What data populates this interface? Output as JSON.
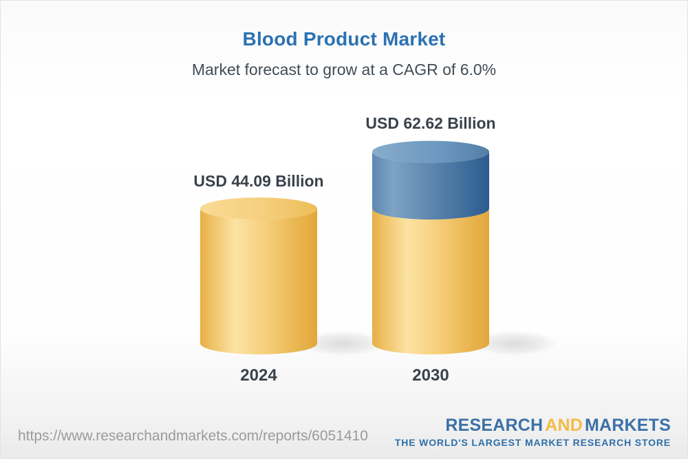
{
  "header": {
    "title": "Blood Product Market",
    "subtitle": "Market forecast to grow at a CAGR of 6.0%"
  },
  "chart_data": {
    "type": "bar",
    "variant": "3d-cylinder",
    "title": "Blood Product Market",
    "subtitle": "Market forecast to grow at a CAGR of 6.0%",
    "cagr_percent": 6.0,
    "unit": "USD Billion",
    "categories": [
      "2024",
      "2030"
    ],
    "values": [
      44.09,
      62.62
    ],
    "value_labels": [
      "USD 44.09 Billion",
      "USD 62.62 Billion"
    ],
    "growth_segment": {
      "bar": "2030",
      "from": 44.09,
      "to": 62.62
    },
    "legend": "none",
    "grid": "off",
    "colors": {
      "base_segment": "#F6CF7C",
      "growth_segment": "#4F7BA6",
      "label_text": "#39424B",
      "title_text": "#2B72B1"
    }
  },
  "footer": {
    "url": "https://www.researchandmarkets.com/reports/6051410",
    "logo": {
      "word1": "RESEARCH",
      "word2": "AND",
      "word3": "MARKETS",
      "tagline": "THE WORLD'S LARGEST MARKET RESEARCH STORE",
      "blue": "#3C70A6",
      "gold": "#F3BC45"
    }
  }
}
